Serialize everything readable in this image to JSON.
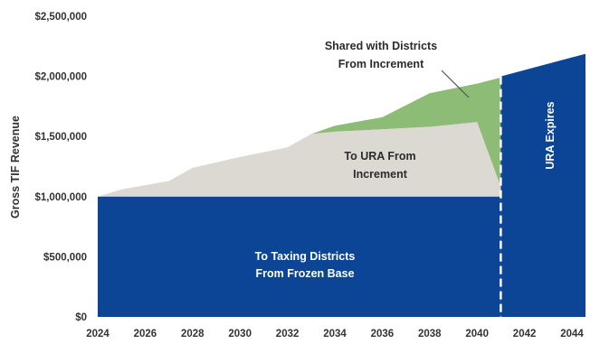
{
  "chart_data": {
    "type": "area",
    "ylabel": "Gross TIF Revenue",
    "xlabel": "",
    "xlim": [
      2024,
      2045
    ],
    "ylim": [
      0,
      2500000
    ],
    "x_ticks": [
      2024,
      2026,
      2028,
      2030,
      2032,
      2034,
      2036,
      2038,
      2040,
      2042,
      2044
    ],
    "x_tick_labels": [
      "2024",
      "2026",
      "2028",
      "2030",
      "2032",
      "2034",
      "2036",
      "2038",
      "2040",
      "2042",
      "2044"
    ],
    "y_ticks": [
      0,
      500000,
      1000000,
      1500000,
      2000000,
      2500000
    ],
    "y_tick_labels": [
      "$0",
      "$500,000",
      "$1,000,000",
      "$1,500,000",
      "$2,000,000",
      "$2,500,000"
    ],
    "grid": false,
    "ura_expiration_year": 2041,
    "series": [
      {
        "name": "To Taxing Districts From Frozen Base",
        "color": "#0d4596",
        "x": [
          2024,
          2041
        ],
        "values": [
          1000000,
          1000000
        ]
      },
      {
        "name": "To URA From Increment",
        "color": "#dcd9d3",
        "x": [
          2024,
          2025,
          2027,
          2028,
          2030,
          2032,
          2033,
          2034,
          2036,
          2038,
          2040,
          2041
        ],
        "values": [
          1000000,
          1060000,
          1130000,
          1240000,
          1330000,
          1410000,
          1520000,
          1540000,
          1560000,
          1580000,
          1620000,
          1080000
        ]
      },
      {
        "name": "Shared with Districts From Increment",
        "color": "#8cbc76",
        "x": [
          2033,
          2034,
          2036,
          2038,
          2040,
          2041
        ],
        "values": [
          1520000,
          1590000,
          1660000,
          1860000,
          1940000,
          1990000
        ]
      },
      {
        "name": "URA Expires",
        "color": "#0d4596",
        "x": [
          2041,
          2045
        ],
        "values": [
          2000000,
          2210000
        ]
      }
    ],
    "annotations": {
      "frozen_base": [
        "To Taxing Districts",
        "From Frozen Base"
      ],
      "ura_increment": [
        "To URA From",
        "Increment"
      ],
      "shared": [
        "Shared with Districts",
        "From Increment"
      ],
      "ura_expires": "URA Expires"
    }
  }
}
